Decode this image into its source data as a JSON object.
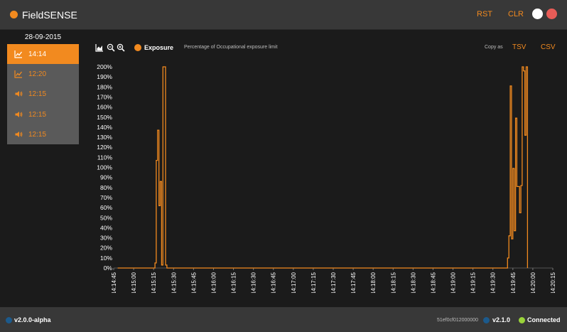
{
  "app": {
    "title": "FieldSENSE"
  },
  "toolbar": {
    "rst_label": "RST",
    "clr_label": "CLR"
  },
  "sidebar": {
    "date": "28-09-2015",
    "items": [
      {
        "label": "14:14",
        "icon": "line-chart-icon",
        "active": true
      },
      {
        "label": "12:20",
        "icon": "line-chart-icon",
        "active": false
      },
      {
        "label": "12:15",
        "icon": "speaker-icon",
        "active": false
      },
      {
        "label": "12:15",
        "icon": "speaker-icon",
        "active": false
      },
      {
        "label": "12:15",
        "icon": "speaker-icon",
        "active": false
      }
    ]
  },
  "chart_header": {
    "series_label": "Exposure",
    "series_description": "Percentage of Occupational exposure limit",
    "copy_as_label": "Copy as",
    "copy_tsv_label": "TSV",
    "copy_csv_label": "CSV"
  },
  "colors": {
    "accent": "#f28a1f",
    "status_blue": "#1c5a8c",
    "connected_green": "#9ad33a",
    "close_red": "#e85c57"
  },
  "chart_data": {
    "type": "line",
    "title": "",
    "xlabel": "",
    "ylabel": "",
    "ylim": [
      0,
      200
    ],
    "yticks": [
      "0%",
      "10%",
      "20%",
      "30%",
      "40%",
      "50%",
      "60%",
      "70%",
      "80%",
      "90%",
      "100%",
      "110%",
      "120%",
      "130%",
      "140%",
      "150%",
      "160%",
      "170%",
      "180%",
      "190%",
      "200%"
    ],
    "xlim": [
      "14:14:45",
      "14:20:15"
    ],
    "xticks": [
      "14:14:45",
      "14:15:00",
      "14:15:15",
      "14:15:30",
      "14:15:45",
      "14:16:00",
      "14:16:15",
      "14:16:30",
      "14:16:45",
      "14:17:00",
      "14:17:15",
      "14:17:30",
      "14:17:45",
      "14:18:00",
      "14:18:15",
      "14:18:30",
      "14:18:45",
      "14:19:00",
      "14:19:15",
      "14:19:30",
      "14:19:45",
      "14:20:00",
      "14:20:15"
    ],
    "grid": false,
    "legend": "top-left",
    "series": [
      {
        "name": "Exposure",
        "color": "#f28a1f",
        "points": [
          [
            "14:14:48",
            0
          ],
          [
            "14:15:16",
            0
          ],
          [
            "14:15:16",
            5
          ],
          [
            "14:15:17",
            5
          ],
          [
            "14:15:17",
            107
          ],
          [
            "14:15:18",
            107
          ],
          [
            "14:15:18",
            137
          ],
          [
            "14:15:19",
            137
          ],
          [
            "14:15:19",
            62
          ],
          [
            "14:15:20",
            62
          ],
          [
            "14:15:20",
            86
          ],
          [
            "14:15:21",
            86
          ],
          [
            "14:15:21",
            3
          ],
          [
            "14:15:22",
            3
          ],
          [
            "14:15:22",
            200
          ],
          [
            "14:15:24",
            200
          ],
          [
            "14:15:24",
            3
          ],
          [
            "14:15:25",
            3
          ],
          [
            "14:15:25",
            0
          ],
          [
            "14:19:41",
            0
          ],
          [
            "14:19:41",
            10
          ],
          [
            "14:19:42",
            10
          ],
          [
            "14:19:42",
            32
          ],
          [
            "14:19:43",
            32
          ],
          [
            "14:19:43",
            181
          ],
          [
            "14:19:44",
            181
          ],
          [
            "14:19:44",
            29
          ],
          [
            "14:19:45",
            29
          ],
          [
            "14:19:45",
            99
          ],
          [
            "14:19:46",
            99
          ],
          [
            "14:19:46",
            37
          ],
          [
            "14:19:47",
            37
          ],
          [
            "14:19:47",
            149
          ],
          [
            "14:19:48",
            149
          ],
          [
            "14:19:48",
            81
          ],
          [
            "14:19:50",
            81
          ],
          [
            "14:19:50",
            55
          ],
          [
            "14:19:51",
            55
          ],
          [
            "14:19:51",
            82
          ],
          [
            "14:19:52",
            82
          ],
          [
            "14:19:52",
            200
          ],
          [
            "14:19:53",
            200
          ],
          [
            "14:19:53",
            196
          ],
          [
            "14:19:54",
            196
          ],
          [
            "14:19:54",
            132
          ],
          [
            "14:19:55",
            132
          ],
          [
            "14:19:55",
            200
          ],
          [
            "14:19:56",
            200
          ],
          [
            "14:19:56",
            0
          ]
        ]
      }
    ]
  },
  "statusbar": {
    "app_version": "v2.0.0-alpha",
    "device_id": "51ef0cf012000000",
    "device_version": "v2.1.0",
    "connection_status": "Connected"
  }
}
